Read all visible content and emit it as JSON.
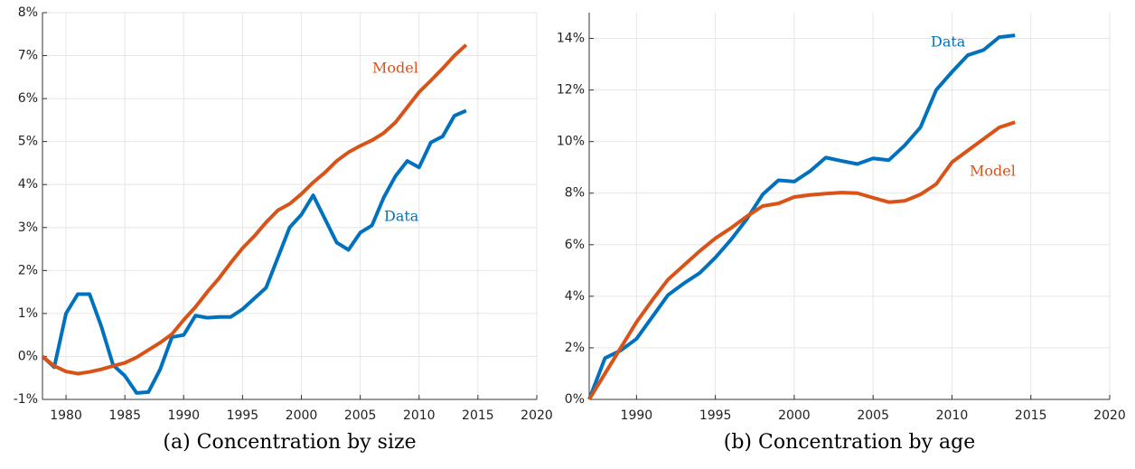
{
  "chart_data": [
    {
      "type": "line",
      "title": "(a) Concentration by size",
      "x": [
        1978,
        1979,
        1980,
        1981,
        1982,
        1983,
        1984,
        1985,
        1986,
        1987,
        1988,
        1989,
        1990,
        1991,
        1992,
        1993,
        1994,
        1995,
        1996,
        1997,
        1998,
        1999,
        2000,
        2001,
        2002,
        2003,
        2004,
        2005,
        2006,
        2007,
        2008,
        2009,
        2010,
        2011,
        2012,
        2013,
        2014
      ],
      "series": [
        {
          "name": "Data",
          "color": "#0072bd",
          "values": [
            0.0,
            -0.25,
            1.0,
            1.45,
            1.45,
            0.7,
            -0.2,
            -0.45,
            -0.85,
            -0.83,
            -0.3,
            0.45,
            0.5,
            0.95,
            0.9,
            0.92,
            0.92,
            1.1,
            1.35,
            1.6,
            2.3,
            3.0,
            3.3,
            3.75,
            3.2,
            2.65,
            2.48,
            2.88,
            3.05,
            3.7,
            4.2,
            4.55,
            4.4,
            4.98,
            5.12,
            5.6,
            5.72
          ]
        },
        {
          "name": "Model",
          "color": "#d95319",
          "values": [
            0.0,
            -0.22,
            -0.35,
            -0.4,
            -0.36,
            -0.3,
            -0.22,
            -0.15,
            -0.02,
            0.15,
            0.32,
            0.52,
            0.85,
            1.15,
            1.5,
            1.82,
            2.18,
            2.52,
            2.8,
            3.12,
            3.4,
            3.55,
            3.78,
            4.05,
            4.28,
            4.55,
            4.75,
            4.9,
            5.03,
            5.2,
            5.45,
            5.8,
            6.15,
            6.42,
            6.7,
            7.0,
            7.25
          ]
        }
      ],
      "xlim": [
        1978,
        2020
      ],
      "xticks": [
        1980,
        1985,
        1990,
        1995,
        2000,
        2005,
        2010,
        2015,
        2020
      ],
      "ylim": [
        -1,
        8
      ],
      "yticks": [
        {
          "value": -1,
          "label": "-1%"
        },
        {
          "value": 0,
          "label": "0%"
        },
        {
          "value": 1,
          "label": "1%"
        },
        {
          "value": 2,
          "label": "2%"
        },
        {
          "value": 3,
          "label": "3%"
        },
        {
          "value": 4,
          "label": "4%"
        },
        {
          "value": 5,
          "label": "5%"
        },
        {
          "value": 6,
          "label": "6%"
        },
        {
          "value": 7,
          "label": "7%"
        },
        {
          "value": 8,
          "label": "8%"
        }
      ],
      "grid": true
    },
    {
      "type": "line",
      "title": "(b) Concentration by age",
      "x": [
        1987,
        1988,
        1989,
        1990,
        1991,
        1992,
        1993,
        1994,
        1995,
        1996,
        1997,
        1998,
        1999,
        2000,
        2001,
        2002,
        2003,
        2004,
        2005,
        2006,
        2007,
        2008,
        2009,
        2010,
        2011,
        2012,
        2013,
        2014
      ],
      "series": [
        {
          "name": "Data",
          "color": "#0072bd",
          "values": [
            0,
            1.6,
            1.9,
            2.35,
            3.2,
            4.05,
            4.5,
            4.9,
            5.5,
            6.2,
            7.0,
            7.95,
            8.5,
            8.45,
            8.85,
            9.38,
            9.25,
            9.13,
            9.35,
            9.28,
            9.85,
            10.55,
            12.0,
            12.7,
            13.35,
            13.55,
            14.05,
            14.12
          ]
        },
        {
          "name": "Model",
          "color": "#d95319",
          "values": [
            0,
            1.0,
            2.0,
            3.0,
            3.85,
            4.65,
            5.2,
            5.75,
            6.25,
            6.65,
            7.1,
            7.5,
            7.6,
            7.85,
            7.93,
            7.98,
            8.02,
            8.0,
            7.82,
            7.65,
            7.7,
            7.95,
            8.35,
            9.2,
            9.65,
            10.1,
            10.55,
            10.75
          ]
        }
      ],
      "xlim": [
        1987,
        2020
      ],
      "xticks": [
        1990,
        1995,
        2000,
        2005,
        2010,
        2015,
        2020
      ],
      "ylim": [
        0,
        15
      ],
      "yticks": [
        {
          "value": 0,
          "label": "0%"
        },
        {
          "value": 2,
          "label": "2%"
        },
        {
          "value": 4,
          "label": "4%"
        },
        {
          "value": 6,
          "label": "6%"
        },
        {
          "value": 8,
          "label": "8%"
        },
        {
          "value": 10,
          "label": "10%"
        },
        {
          "value": 12,
          "label": "12%"
        },
        {
          "value": 14,
          "label": "14%"
        }
      ],
      "grid": true
    }
  ]
}
